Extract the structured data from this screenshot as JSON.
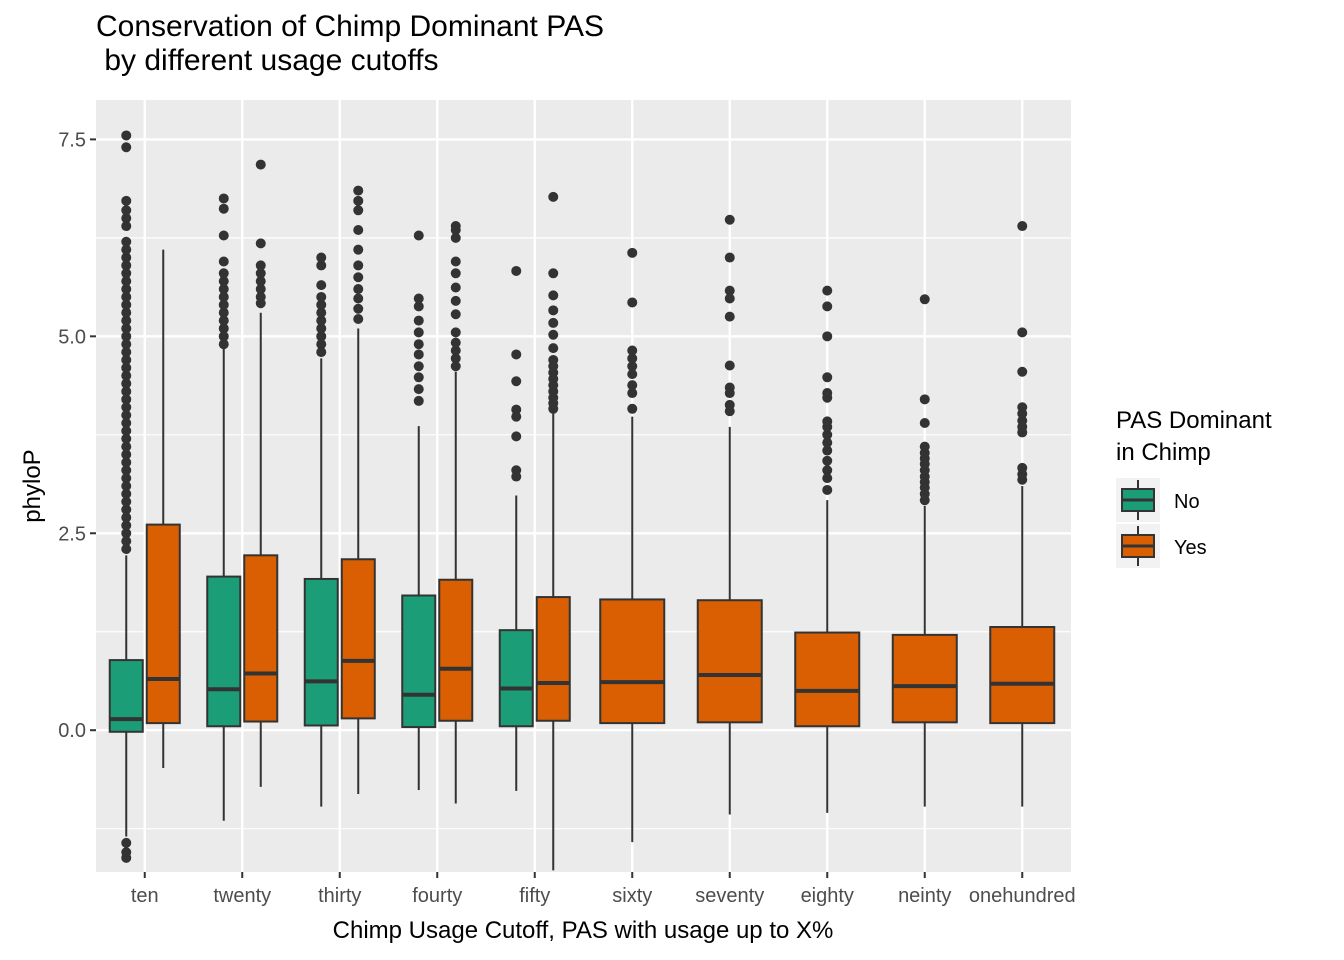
{
  "chart_data": {
    "type": "boxplot",
    "title": "Conservation of Chimp Dominant PAS\n by different usage cutoffs",
    "xlabel": "Chimp Usage Cutoff, PAS with usage up to X%",
    "ylabel": "phyloP",
    "ylim": [
      -1.8,
      8.0
    ],
    "yticks": [
      0.0,
      2.5,
      5.0,
      7.5
    ],
    "ytick_labels": [
      "0.0",
      "2.5",
      "5.0",
      "7.5"
    ],
    "categories": [
      "ten",
      "twenty",
      "thirty",
      "fourty",
      "fifty",
      "sixty",
      "seventy",
      "eighty",
      "neinty",
      "onehundred"
    ],
    "grid": true,
    "legend": {
      "title": "PAS Dominant\nin Chimp",
      "position": "right",
      "entries": [
        {
          "name": "No",
          "color": "#1B9E77"
        },
        {
          "name": "Yes",
          "color": "#D95F02"
        }
      ]
    },
    "series": [
      {
        "name": "No",
        "color": "#1B9E77",
        "boxes": [
          {
            "category": "ten",
            "lower_whisker": -1.35,
            "q1": -0.02,
            "median": 0.14,
            "q3": 0.89,
            "upper_whisker": 2.22,
            "outliers": [
              2.3,
              2.4,
              2.5,
              2.6,
              2.7,
              2.8,
              2.9,
              3.0,
              3.1,
              3.2,
              3.3,
              3.4,
              3.5,
              3.6,
              3.7,
              3.8,
              3.9,
              4.0,
              4.1,
              4.2,
              4.3,
              4.4,
              4.5,
              4.6,
              4.7,
              4.8,
              4.9,
              5.0,
              5.1,
              5.2,
              5.3,
              5.4,
              5.5,
              5.6,
              5.7,
              5.8,
              5.9,
              6.0,
              6.1,
              6.2,
              6.4,
              6.5,
              6.6,
              6.72,
              7.4,
              7.55,
              -1.43,
              -1.55,
              -1.62
            ]
          },
          {
            "category": "twenty",
            "lower_whisker": -1.15,
            "q1": 0.05,
            "median": 0.52,
            "q3": 1.95,
            "upper_whisker": 4.85,
            "outliers": [
              4.9,
              5.0,
              5.1,
              5.2,
              5.3,
              5.4,
              5.5,
              5.6,
              5.7,
              5.8,
              5.95,
              6.28,
              6.62,
              6.75
            ]
          },
          {
            "category": "thirty",
            "lower_whisker": -0.97,
            "q1": 0.06,
            "median": 0.62,
            "q3": 1.92,
            "upper_whisker": 4.72,
            "outliers": [
              4.8,
              4.9,
              5.0,
              5.1,
              5.2,
              5.3,
              5.4,
              5.5,
              5.65,
              5.9,
              6.0
            ]
          },
          {
            "category": "fourty",
            "lower_whisker": -0.76,
            "q1": 0.04,
            "median": 0.45,
            "q3": 1.71,
            "upper_whisker": 3.86,
            "outliers": [
              4.18,
              4.33,
              4.48,
              4.62,
              4.77,
              4.9,
              5.05,
              5.2,
              5.38,
              5.48,
              6.28
            ]
          },
          {
            "category": "fifty",
            "lower_whisker": -0.77,
            "q1": 0.05,
            "median": 0.53,
            "q3": 1.27,
            "upper_whisker": 2.98,
            "outliers": [
              3.22,
              3.3,
              3.73,
              3.98,
              4.07,
              4.43,
              4.77,
              5.83
            ]
          }
        ]
      },
      {
        "name": "Yes",
        "color": "#D95F02",
        "boxes": [
          {
            "category": "ten",
            "lower_whisker": -0.48,
            "q1": 0.09,
            "median": 0.65,
            "q3": 2.61,
            "upper_whisker": 6.1,
            "outliers": []
          },
          {
            "category": "twenty",
            "lower_whisker": -0.72,
            "q1": 0.11,
            "median": 0.72,
            "q3": 2.22,
            "upper_whisker": 5.3,
            "outliers": [
              5.42,
              5.5,
              5.6,
              5.7,
              5.8,
              5.9,
              6.18,
              7.18
            ]
          },
          {
            "category": "thirty",
            "lower_whisker": -0.81,
            "q1": 0.15,
            "median": 0.88,
            "q3": 2.17,
            "upper_whisker": 5.1,
            "outliers": [
              5.22,
              5.35,
              5.48,
              5.6,
              5.75,
              5.9,
              6.1,
              6.35,
              6.6,
              6.72,
              6.85
            ]
          },
          {
            "category": "fourty",
            "lower_whisker": -0.93,
            "q1": 0.12,
            "median": 0.78,
            "q3": 1.91,
            "upper_whisker": 4.55,
            "outliers": [
              4.62,
              4.72,
              4.82,
              4.92,
              5.05,
              5.28,
              5.45,
              5.62,
              5.8,
              5.95,
              6.25,
              6.35,
              6.4
            ]
          },
          {
            "category": "fifty",
            "lower_whisker": -1.78,
            "q1": 0.12,
            "median": 0.6,
            "q3": 1.69,
            "upper_whisker": 4.02,
            "outliers": [
              4.08,
              4.15,
              4.22,
              4.3,
              4.38,
              4.46,
              4.54,
              4.62,
              4.7,
              4.85,
              5.02,
              5.17,
              5.33,
              5.52,
              5.8,
              6.77
            ]
          },
          {
            "category": "sixty",
            "lower_whisker": -1.42,
            "q1": 0.09,
            "median": 0.61,
            "q3": 1.66,
            "upper_whisker": 3.98,
            "outliers": [
              4.08,
              4.28,
              4.38,
              4.52,
              4.62,
              4.72,
              4.82,
              5.43,
              6.06
            ]
          },
          {
            "category": "seventy",
            "lower_whisker": -1.07,
            "q1": 0.1,
            "median": 0.7,
            "q3": 1.65,
            "upper_whisker": 3.85,
            "outliers": [
              4.05,
              4.13,
              4.28,
              4.35,
              4.63,
              5.25,
              5.48,
              5.58,
              6.0,
              6.48
            ]
          },
          {
            "category": "eighty",
            "lower_whisker": -1.05,
            "q1": 0.05,
            "median": 0.5,
            "q3": 1.24,
            "upper_whisker": 2.92,
            "outliers": [
              3.05,
              3.2,
              3.3,
              3.42,
              3.55,
              3.65,
              3.75,
              3.85,
              3.92,
              4.22,
              4.28,
              4.48,
              5.0,
              5.38,
              5.58
            ]
          },
          {
            "category": "neinty",
            "lower_whisker": -0.97,
            "q1": 0.1,
            "median": 0.56,
            "q3": 1.21,
            "upper_whisker": 2.85,
            "outliers": [
              2.92,
              3.0,
              3.08,
              3.15,
              3.22,
              3.3,
              3.38,
              3.45,
              3.52,
              3.6,
              3.9,
              4.2,
              5.47
            ]
          },
          {
            "category": "onehundred",
            "lower_whisker": -0.97,
            "q1": 0.09,
            "median": 0.59,
            "q3": 1.31,
            "upper_whisker": 3.1,
            "outliers": [
              3.18,
              3.25,
              3.33,
              3.78,
              3.85,
              3.93,
              4.02,
              4.1,
              4.55,
              5.05,
              6.4
            ]
          }
        ]
      }
    ]
  }
}
